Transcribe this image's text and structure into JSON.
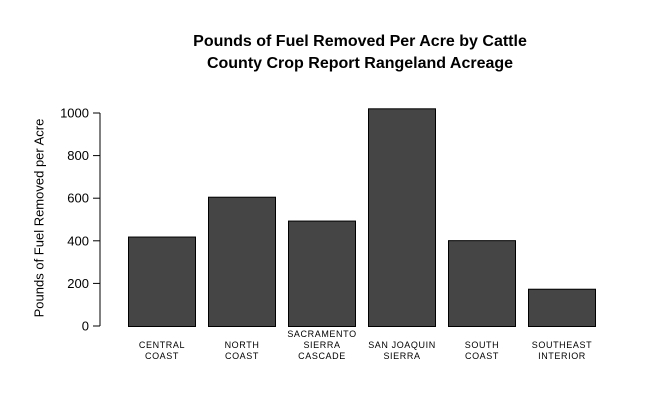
{
  "chart_data": {
    "type": "bar",
    "title": [
      "Pounds of Fuel Removed Per Acre by Cattle",
      "County Crop Report Rangeland Acreage"
    ],
    "xlabel": "",
    "ylabel": "Pounds of Fuel Removed per Acre",
    "categories": [
      [
        "CENTRAL",
        "COAST"
      ],
      [
        "NORTH",
        "COAST"
      ],
      [
        "SACRAMENTO",
        "SIERRA",
        "CASCADE"
      ],
      [
        "SAN JOAQUIN",
        "SIERRA"
      ],
      [
        "SOUTH",
        "COAST"
      ],
      [
        "SOUTHEAST",
        "INTERIOR"
      ]
    ],
    "values": [
      420,
      607,
      495,
      1022,
      403,
      175
    ],
    "ylim": [
      0,
      1050
    ],
    "yticks": [
      0,
      200,
      400,
      600,
      800,
      1000
    ],
    "bar_color": "#454545",
    "bar_edge": "#000000",
    "grid": false,
    "legend": "none"
  }
}
